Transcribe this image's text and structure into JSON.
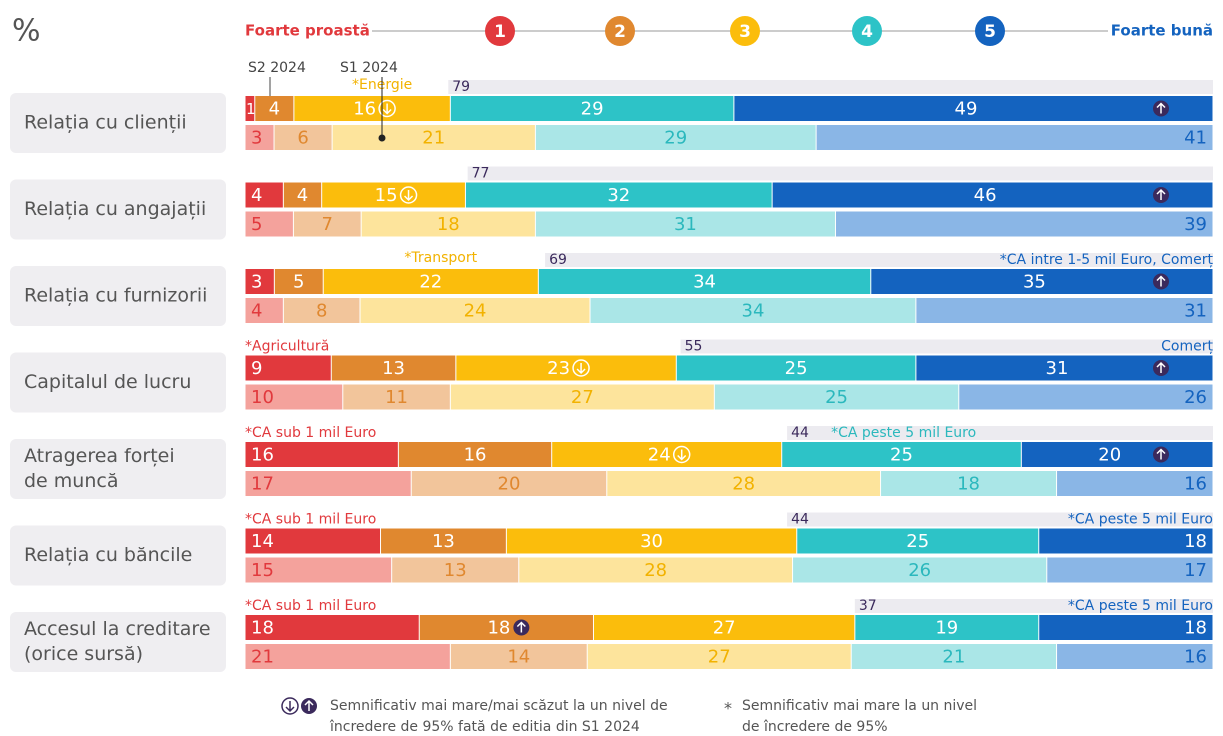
{
  "chart_data": {
    "type": "stacked-bar-horizontal",
    "unit": "%",
    "scale": {
      "low": "Foarte proastă",
      "high": "Foarte bună",
      "points": [
        1,
        2,
        3,
        4,
        5
      ]
    },
    "series_names": [
      "S2 2024",
      "S1 2024"
    ],
    "colors": [
      [
        "#e1393d",
        "#e0882f",
        "#fbbd0c",
        "#2dc3c7",
        "#1463bf"
      ],
      [
        "#f4a29c",
        "#f2c59b",
        "#fde49c",
        "#aae6e7",
        "#8ab6e6"
      ]
    ],
    "text_colors": [
      [
        "#ffffff",
        "#ffffff",
        "#ffffff",
        "#ffffff",
        "#ffffff"
      ],
      [
        "#e1393d",
        "#e0882f",
        "#f2b200",
        "#2bb8bd",
        "#1463bf"
      ]
    ],
    "total_color": "#ecebf0",
    "rows": [
      {
        "label": [
          "Relația cu clienții"
        ],
        "values": [
          [
            1,
            4,
            16,
            29,
            49
          ],
          [
            3,
            6,
            21,
            29,
            41
          ]
        ],
        "top": 79,
        "significance": [
          {
            "segment": 2,
            "dir": "down"
          },
          {
            "segment": 4,
            "dir": "up"
          }
        ],
        "notes": [
          {
            "text": "*Energie",
            "segment": 2
          }
        ]
      },
      {
        "label": [
          "Relația cu angajații"
        ],
        "values": [
          [
            4,
            4,
            15,
            32,
            46
          ],
          [
            5,
            7,
            18,
            31,
            39
          ]
        ],
        "top": 77,
        "significance": [
          {
            "segment": 2,
            "dir": "down"
          },
          {
            "segment": 4,
            "dir": "up"
          }
        ],
        "notes": []
      },
      {
        "label": [
          "Relația cu furnizorii"
        ],
        "values": [
          [
            3,
            5,
            22,
            34,
            35
          ],
          [
            4,
            8,
            24,
            34,
            31
          ]
        ],
        "top": 69,
        "significance": [
          {
            "segment": 4,
            "dir": "up"
          }
        ],
        "notes": [
          {
            "text": "*Transport",
            "segment": 2
          },
          {
            "text": "*CA intre 1-5 mil Euro, Comerț",
            "segment": 4
          }
        ]
      },
      {
        "label": [
          "Capitalul de lucru"
        ],
        "values": [
          [
            9,
            13,
            23,
            25,
            31
          ],
          [
            10,
            11,
            27,
            25,
            26
          ]
        ],
        "top": 55,
        "significance": [
          {
            "segment": 2,
            "dir": "down"
          },
          {
            "segment": 4,
            "dir": "up"
          }
        ],
        "notes": [
          {
            "text": "*Agricultură",
            "segment": 0
          },
          {
            "text": "Comerț",
            "segment": 4
          }
        ]
      },
      {
        "label": [
          "Atragerea forței",
          "de muncă"
        ],
        "values": [
          [
            16,
            16,
            24,
            25,
            20
          ],
          [
            17,
            20,
            28,
            18,
            16
          ]
        ],
        "top": 44,
        "significance": [
          {
            "segment": 2,
            "dir": "down"
          },
          {
            "segment": 4,
            "dir": "up"
          }
        ],
        "notes": [
          {
            "text": "*CA sub 1 mil Euro",
            "segment": 0
          },
          {
            "text": "*CA peste 5 mil Euro",
            "segment": 3
          }
        ]
      },
      {
        "label": [
          "Relația cu băncile"
        ],
        "values": [
          [
            14,
            13,
            30,
            25,
            18
          ],
          [
            15,
            13,
            28,
            26,
            17
          ]
        ],
        "top": 44,
        "significance": [],
        "notes": [
          {
            "text": "*CA sub 1 mil Euro",
            "segment": 0
          },
          {
            "text": "*CA peste 5 mil Euro",
            "segment": 4
          }
        ]
      },
      {
        "label": [
          "Accesul la creditare",
          "(orice sursă)"
        ],
        "values": [
          [
            18,
            18,
            27,
            19,
            18
          ],
          [
            21,
            14,
            27,
            21,
            16
          ]
        ],
        "top": 37,
        "significance": [
          {
            "segment": 1,
            "dir": "up"
          }
        ],
        "notes": [
          {
            "text": "*CA sub 1 mil Euro",
            "segment": 0
          },
          {
            "text": "*CA peste 5 mil Euro",
            "segment": 4
          }
        ]
      }
    ],
    "legend": {
      "significance": [
        "Semnificativ mai mare/mai scăzut la un nivel de",
        "încredere de 95% fată de editia din S1 2024"
      ],
      "star_symbol": "*",
      "star": [
        "Semnificativ mai mare la un nivel",
        "de încredere de 95%"
      ]
    }
  }
}
